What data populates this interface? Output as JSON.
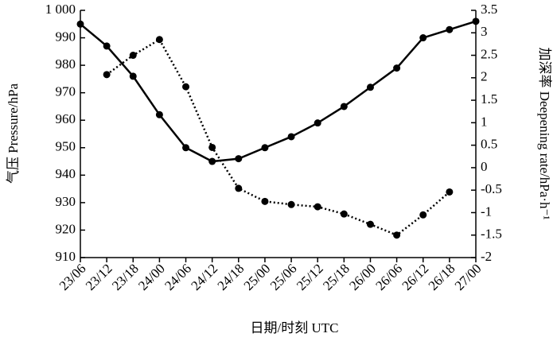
{
  "chart_data": {
    "type": "line",
    "x_label": "日期/时刻 UTC",
    "y_label": "气压 Pressure/hPa",
    "y2_label": "加深率 Deepening rate/hPa·h⁻¹",
    "categories": [
      "23/06",
      "23/12",
      "23/18",
      "24/00",
      "24/06",
      "24/12",
      "24/18",
      "25/00",
      "25/06",
      "25/12",
      "25/18",
      "26/00",
      "26/06",
      "26/12",
      "26/18",
      "27/00"
    ],
    "series": [
      {
        "color": "#000000",
        "line_style": "solid",
        "values": [
          995,
          987,
          976,
          962,
          950,
          945,
          946,
          950,
          954,
          959,
          965,
          972,
          979,
          990,
          993,
          996
        ]
      },
      {
        "color": "#000000",
        "line_style": "dotted",
        "axis": "y2",
        "values": [
          null,
          2.07,
          2.5,
          2.85,
          1.8,
          0.45,
          -0.46,
          -0.75,
          -0.82,
          -0.87,
          -1.03,
          -1.26,
          -1.5,
          -1.05,
          -0.54,
          null
        ]
      }
    ],
    "ylim": [
      910,
      1000
    ],
    "yticks": [
      910,
      920,
      930,
      940,
      950,
      960,
      970,
      980,
      990,
      {
        "value": 1000,
        "label": "1 000"
      }
    ],
    "y2lim": [
      -2,
      3.5
    ],
    "y2ticks": [
      -2,
      -1.5,
      -1,
      -0.5,
      0,
      0.5,
      1,
      1.5,
      2,
      2.5,
      3,
      3.5
    ],
    "grid": false
  }
}
